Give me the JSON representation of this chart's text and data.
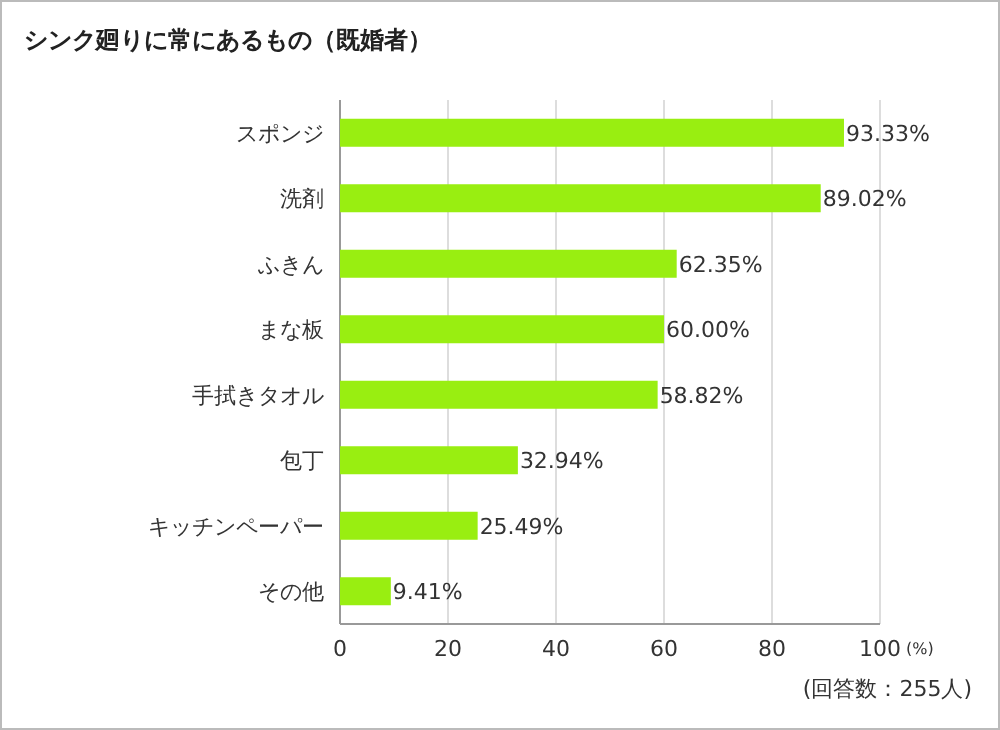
{
  "chart_data": {
    "type": "bar",
    "orientation": "horizontal",
    "title": "シンク廻りに常にあるもの（既婚者）",
    "categories": [
      "スポンジ",
      "洗剤",
      "ふきん",
      "まな板",
      "手拭きタオル",
      "包丁",
      "キッチンペーパー",
      "その他"
    ],
    "values": [
      93.33,
      89.02,
      62.35,
      60.0,
      58.82,
      32.94,
      25.49,
      9.41
    ],
    "value_labels": [
      "93.33%",
      "89.02%",
      "62.35%",
      "60.00%",
      "58.82%",
      "32.94%",
      "25.49%",
      "9.41%"
    ],
    "color": "#99ee11",
    "xlim": [
      0,
      100
    ],
    "xticks": [
      0,
      20,
      40,
      60,
      80,
      100
    ],
    "xlabel": "(%)",
    "grid": "x",
    "annotations": [
      "(回答数：255人)"
    ]
  }
}
